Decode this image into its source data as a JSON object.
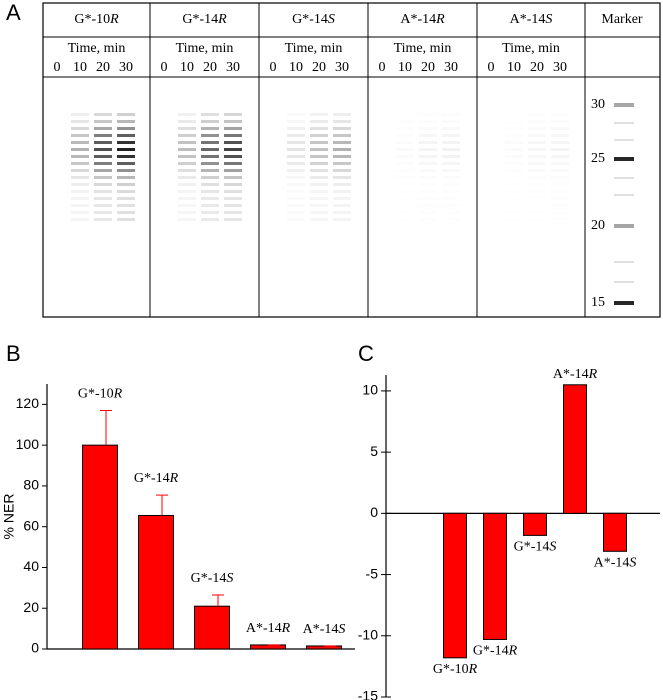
{
  "panel_a": {
    "label": "A",
    "lanes": [
      "G*-10R",
      "G*-14R",
      "G*-14S",
      "A*-14R",
      "A*-14S"
    ],
    "time_label": "Time, min",
    "times": [
      0,
      10,
      20,
      30
    ],
    "marker_header": "Marker",
    "marker_sizes": [
      30,
      25,
      20,
      15
    ]
  },
  "chart_data": [
    {
      "type": "bar",
      "label": "B",
      "ylabel": "% NER",
      "categories": [
        "G*-10R",
        "G*-14R",
        "G*-14S",
        "A*-14R",
        "A*-14S"
      ],
      "values": [
        100,
        65.5,
        21,
        2,
        1.5
      ],
      "errors": [
        17,
        10,
        5.5,
        0,
        0
      ],
      "color": "#ff0000",
      "ylim": [
        0,
        130
      ],
      "yticks": [
        0,
        20,
        40,
        60,
        80,
        100,
        120
      ]
    },
    {
      "type": "bar",
      "label": "C",
      "categories": [
        "G*-10R",
        "G*-14R",
        "G*-14S",
        "A*-14R",
        "A*-14S"
      ],
      "values": [
        -11.8,
        -10.3,
        -1.8,
        10.5,
        -3.1
      ],
      "color": "#ff0000",
      "ylim": [
        -15,
        11.3
      ],
      "yticks": [
        -15,
        -10,
        -5,
        0,
        5,
        10
      ]
    }
  ]
}
